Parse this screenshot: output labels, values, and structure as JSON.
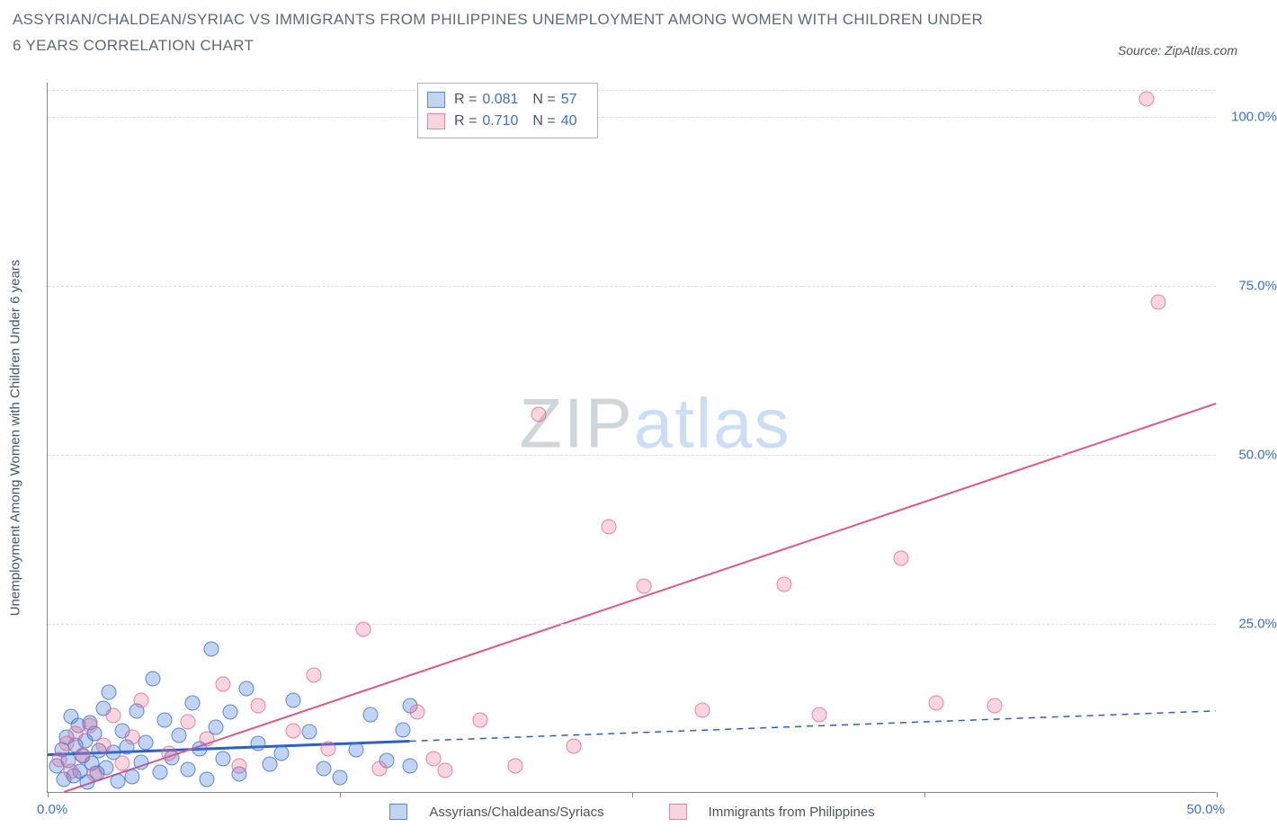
{
  "title": "ASSYRIAN/CHALDEAN/SYRIAC VS IMMIGRANTS FROM PHILIPPINES UNEMPLOYMENT AMONG WOMEN WITH CHILDREN UNDER 6 YEARS CORRELATION CHART",
  "source": "Source: ZipAtlas.com",
  "ylabel": "Unemployment Among Women with Children Under 6 years",
  "watermark_bold": "ZIP",
  "watermark_light": "atlas",
  "chart": {
    "type": "scatter",
    "xlim": [
      0,
      50
    ],
    "ylim": [
      0,
      105
    ],
    "x_ticks_at": [
      0,
      12.5,
      25,
      37.5,
      50
    ],
    "x_origin_label": "0.0%",
    "x_max_label": "50.0%",
    "y_ticks": [
      {
        "v": 25,
        "label": "25.0%"
      },
      {
        "v": 50,
        "label": "50.0%"
      },
      {
        "v": 75,
        "label": "75.0%"
      },
      {
        "v": 100,
        "label": "100.0%"
      }
    ],
    "grid_color": "#d8dde3",
    "axis_color": "#888888",
    "background_color": "#ffffff"
  },
  "series": [
    {
      "name": "Assyrians/Chaldeans/Syriacs",
      "color_fill": "rgba(78,132,222,0.35)",
      "color_stroke": "rgba(60,110,200,0.75)",
      "marker_css_class": "blue",
      "stats": {
        "R": "0.081",
        "N": "57"
      },
      "trend": {
        "x1": 0,
        "y1": 5.5,
        "x2": 50,
        "y2": 12.0,
        "solid_until_x": 15.5,
        "color": "#2d5fc9",
        "width": 3
      },
      "points": [
        [
          0.4,
          3.8
        ],
        [
          0.6,
          6.2
        ],
        [
          0.7,
          1.9
        ],
        [
          0.8,
          8.1
        ],
        [
          0.9,
          4.7
        ],
        [
          1.0,
          11.2
        ],
        [
          1.1,
          2.4
        ],
        [
          1.2,
          6.9
        ],
        [
          1.3,
          9.8
        ],
        [
          1.4,
          3.1
        ],
        [
          1.5,
          5.3
        ],
        [
          1.6,
          7.6
        ],
        [
          1.7,
          1.4
        ],
        [
          1.8,
          10.3
        ],
        [
          1.9,
          4.2
        ],
        [
          2.0,
          8.7
        ],
        [
          2.1,
          2.8
        ],
        [
          2.2,
          6.1
        ],
        [
          2.4,
          12.4
        ],
        [
          2.5,
          3.6
        ],
        [
          2.6,
          14.8
        ],
        [
          2.8,
          5.8
        ],
        [
          3.0,
          1.6
        ],
        [
          3.2,
          9.1
        ],
        [
          3.4,
          6.7
        ],
        [
          3.6,
          2.2
        ],
        [
          3.8,
          11.9
        ],
        [
          4.0,
          4.4
        ],
        [
          4.2,
          7.3
        ],
        [
          4.5,
          16.7
        ],
        [
          4.8,
          2.9
        ],
        [
          5.0,
          10.6
        ],
        [
          5.3,
          5.1
        ],
        [
          5.6,
          8.4
        ],
        [
          6.0,
          3.3
        ],
        [
          6.2,
          13.1
        ],
        [
          6.5,
          6.4
        ],
        [
          6.8,
          1.8
        ],
        [
          7.0,
          21.2
        ],
        [
          7.2,
          9.6
        ],
        [
          7.5,
          4.9
        ],
        [
          7.8,
          11.8
        ],
        [
          8.2,
          2.6
        ],
        [
          8.5,
          15.3
        ],
        [
          9.0,
          7.2
        ],
        [
          9.5,
          4.1
        ],
        [
          10.0,
          5.7
        ],
        [
          10.5,
          13.6
        ],
        [
          11.2,
          8.9
        ],
        [
          11.8,
          3.4
        ],
        [
          12.5,
          2.1
        ],
        [
          13.2,
          6.3
        ],
        [
          13.8,
          11.4
        ],
        [
          14.5,
          4.6
        ],
        [
          15.2,
          9.2
        ],
        [
          15.5,
          3.8
        ],
        [
          15.5,
          12.7
        ]
      ]
    },
    {
      "name": "Immigrants from Philippines",
      "color_fill": "rgba(235,115,150,0.30)",
      "color_stroke": "rgba(225,95,135,0.70)",
      "marker_css_class": "pink",
      "stats": {
        "R": "0.710",
        "N": "40"
      },
      "trend": {
        "x1": 0.7,
        "y1": 0,
        "x2": 50,
        "y2": 57.5,
        "solid_until_x": 50,
        "color": "#e15587",
        "width": 2
      },
      "points": [
        [
          0.5,
          4.8
        ],
        [
          0.8,
          7.2
        ],
        [
          1.0,
          3.1
        ],
        [
          1.2,
          8.6
        ],
        [
          1.5,
          5.4
        ],
        [
          1.8,
          9.8
        ],
        [
          2.0,
          2.7
        ],
        [
          2.4,
          6.9
        ],
        [
          2.8,
          11.3
        ],
        [
          3.2,
          4.2
        ],
        [
          3.6,
          8.1
        ],
        [
          4.0,
          13.6
        ],
        [
          5.2,
          5.7
        ],
        [
          6.0,
          10.4
        ],
        [
          6.8,
          7.8
        ],
        [
          7.5,
          15.9
        ],
        [
          8.2,
          3.8
        ],
        [
          9.0,
          12.7
        ],
        [
          10.5,
          9.1
        ],
        [
          11.4,
          17.3
        ],
        [
          12.0,
          6.4
        ],
        [
          13.5,
          24.1
        ],
        [
          14.2,
          3.5
        ],
        [
          15.8,
          11.8
        ],
        [
          16.5,
          4.9
        ],
        [
          17.0,
          3.2
        ],
        [
          18.5,
          10.6
        ],
        [
          20.0,
          3.9
        ],
        [
          21.0,
          55.8
        ],
        [
          22.5,
          6.8
        ],
        [
          24.0,
          39.2
        ],
        [
          25.5,
          30.4
        ],
        [
          28.0,
          12.1
        ],
        [
          31.5,
          30.7
        ],
        [
          33.0,
          11.4
        ],
        [
          36.5,
          34.6
        ],
        [
          38.0,
          13.2
        ],
        [
          40.5,
          12.7
        ],
        [
          47.0,
          102.5
        ],
        [
          47.5,
          72.5
        ]
      ]
    }
  ],
  "bottom_legend": [
    {
      "swatch": "blue",
      "label": "Assyrians/Chaldeans/Syriacs"
    },
    {
      "swatch": "pink",
      "label": "Immigrants from Philippines"
    }
  ],
  "stats_legend_labels": {
    "R": "R =",
    "N": "N ="
  }
}
